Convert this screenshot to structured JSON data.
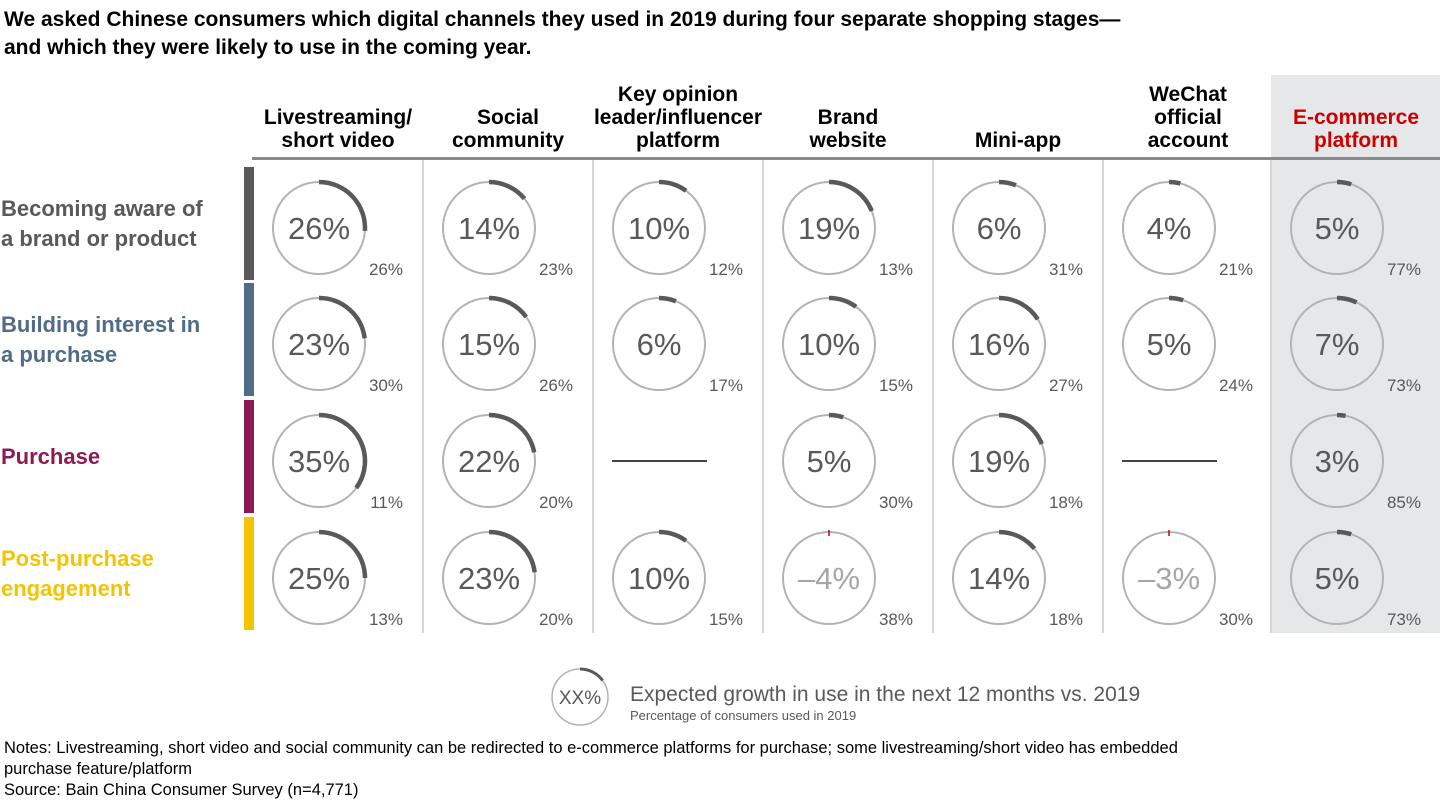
{
  "title_lines": [
    "We asked Chinese consumers which digital channels they used in 2019 during four separate shopping stages—",
    "and which they were likely to use in the coming year."
  ],
  "colors": {
    "ring": "#b3b3b3",
    "arc": "#595959",
    "negative_tick": "#cc0000",
    "highlight_header": "#cc0000",
    "highlight_bg": "#e6e7e8"
  },
  "chart_data": {
    "type": "table",
    "title": "We asked Chinese consumers which digital channels they used in 2019 during four separate shopping stages—and which they were likely to use in the coming year.",
    "columns": [
      {
        "label_lines": [
          "Livestreaming/",
          "short video"
        ],
        "highlight": false
      },
      {
        "label_lines": [
          "Social",
          "community"
        ],
        "highlight": false
      },
      {
        "label_lines": [
          "Key opinion",
          "leader/influencer",
          "platform"
        ],
        "highlight": false
      },
      {
        "label_lines": [
          "Brand",
          "website"
        ],
        "highlight": false
      },
      {
        "label_lines": [
          "Mini-app"
        ],
        "highlight": false
      },
      {
        "label_lines": [
          "WeChat",
          "official",
          "account"
        ],
        "highlight": false
      },
      {
        "label_lines": [
          "E-commerce",
          "platform"
        ],
        "highlight": true
      }
    ],
    "rows": [
      {
        "label_lines": [
          "Becoming aware of",
          "a brand or product"
        ],
        "color": "#595959",
        "cells": [
          {
            "growth": 26,
            "growth_label": "26%",
            "used_2019": "26%"
          },
          {
            "growth": 14,
            "growth_label": "14%",
            "used_2019": "23%"
          },
          {
            "growth": 10,
            "growth_label": "10%",
            "used_2019": "12%"
          },
          {
            "growth": 19,
            "growth_label": "19%",
            "used_2019": "13%"
          },
          {
            "growth": 6,
            "growth_label": "6%",
            "used_2019": "31%"
          },
          {
            "growth": 4,
            "growth_label": "4%",
            "used_2019": "21%"
          },
          {
            "growth": 5,
            "growth_label": "5%",
            "used_2019": "77%"
          }
        ]
      },
      {
        "label_lines": [
          "Building interest in",
          "a purchase"
        ],
        "color": "#506c86",
        "cells": [
          {
            "growth": 23,
            "growth_label": "23%",
            "used_2019": "30%"
          },
          {
            "growth": 15,
            "growth_label": "15%",
            "used_2019": "26%"
          },
          {
            "growth": 6,
            "growth_label": "6%",
            "used_2019": "17%"
          },
          {
            "growth": 10,
            "growth_label": "10%",
            "used_2019": "15%"
          },
          {
            "growth": 16,
            "growth_label": "16%",
            "used_2019": "27%"
          },
          {
            "growth": 5,
            "growth_label": "5%",
            "used_2019": "24%"
          },
          {
            "growth": 7,
            "growth_label": "7%",
            "used_2019": "73%"
          }
        ]
      },
      {
        "label_lines": [
          "Purchase"
        ],
        "color": "#8b1a55",
        "cells": [
          {
            "growth": 35,
            "growth_label": "35%",
            "used_2019": "11%"
          },
          {
            "growth": 22,
            "growth_label": "22%",
            "used_2019": "20%"
          },
          null,
          {
            "growth": 5,
            "growth_label": "5%",
            "used_2019": "30%"
          },
          {
            "growth": 19,
            "growth_label": "19%",
            "used_2019": "18%"
          },
          null,
          {
            "growth": 3,
            "growth_label": "3%",
            "used_2019": "85%"
          }
        ]
      },
      {
        "label_lines": [
          "Post-purchase",
          "engagement"
        ],
        "color": "#f5c400",
        "cells": [
          {
            "growth": 25,
            "growth_label": "25%",
            "used_2019": "13%"
          },
          {
            "growth": 23,
            "growth_label": "23%",
            "used_2019": "20%"
          },
          {
            "growth": 10,
            "growth_label": "10%",
            "used_2019": "15%"
          },
          {
            "growth": -4,
            "growth_label": "–4%",
            "used_2019": "38%"
          },
          {
            "growth": 14,
            "growth_label": "14%",
            "used_2019": "18%"
          },
          {
            "growth": -3,
            "growth_label": "–3%",
            "used_2019": "30%"
          },
          {
            "growth": 5,
            "growth_label": "5%",
            "used_2019": "73%"
          }
        ]
      }
    ]
  },
  "legend": {
    "sample_label": "XX%",
    "main": "Expected growth in use in the next 12 months vs. 2019",
    "sub": "Percentage of consumers used in 2019"
  },
  "notes": {
    "line1": "Notes: Livestreaming, short video and social community can be redirected to e-commerce platforms for purchase; some livestreaming/short video has embedded",
    "line2": "purchase feature/platform",
    "line3": "Source: Bain China Consumer Survey (n=4,771)"
  }
}
